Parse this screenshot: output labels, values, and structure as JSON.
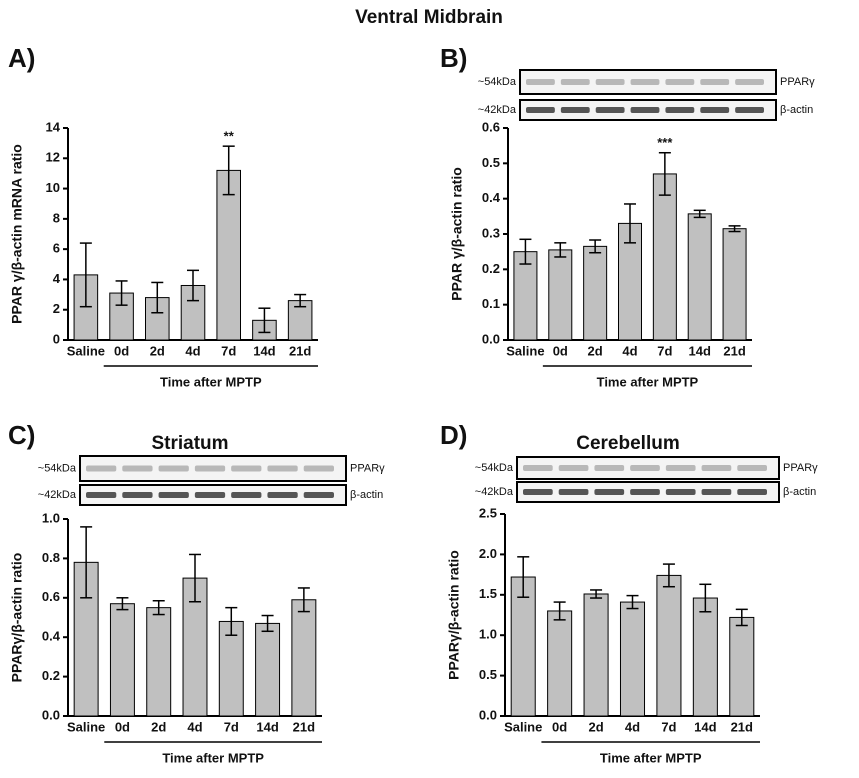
{
  "title": "Ventral Midbrain",
  "chart_data": [
    {
      "type": "bar",
      "panel": "A)",
      "ylabel": "PPAR γ/β-actin mRNA ratio",
      "xlabel": "Time after MPTP",
      "categories": [
        "Saline",
        "0d",
        "2d",
        "4d",
        "7d",
        "14d",
        "21d"
      ],
      "values": [
        4.3,
        3.1,
        2.8,
        3.6,
        11.2,
        1.3,
        2.6
      ],
      "errors": [
        2.1,
        0.8,
        1.0,
        1.0,
        1.6,
        0.8,
        0.4
      ],
      "color": "#c0c0c0",
      "ylim": [
        0,
        14
      ],
      "yticks": [
        0,
        2,
        4,
        6,
        8,
        10,
        12,
        14
      ],
      "annotations": [
        {
          "text": "**",
          "x": "7d"
        }
      ]
    },
    {
      "type": "bar",
      "panel": "B)",
      "ylabel": "PPAR γ/β-actin ratio",
      "xlabel": "Time after MPTP",
      "blots": [
        {
          "size": "~54kDa",
          "protein": "PPARγ"
        },
        {
          "size": "~42kDa",
          "protein": "β-actin"
        }
      ],
      "categories": [
        "Saline",
        "0d",
        "2d",
        "4d",
        "7d",
        "14d",
        "21d"
      ],
      "values": [
        0.25,
        0.255,
        0.265,
        0.33,
        0.47,
        0.357,
        0.315
      ],
      "errors": [
        0.035,
        0.02,
        0.018,
        0.055,
        0.06,
        0.01,
        0.008
      ],
      "color": "#c0c0c0",
      "ylim": [
        0,
        0.6
      ],
      "yticks": [
        {
          "value": 0,
          "label": "0.0"
        },
        0.1,
        0.2,
        0.3,
        0.4,
        0.5,
        0.6
      ],
      "annotations": [
        {
          "text": "***",
          "x": "7d"
        }
      ]
    },
    {
      "type": "bar",
      "panel": "C)",
      "title": "Striatum",
      "ylabel": "PPARγ/β-actin ratio",
      "xlabel": "Time after MPTP",
      "blots": [
        {
          "size": "~54kDa",
          "protein": "PPARγ"
        },
        {
          "size": "~42kDa",
          "protein": "β-actin"
        }
      ],
      "categories": [
        "Saline",
        "0d",
        "2d",
        "4d",
        "7d",
        "14d",
        "21d"
      ],
      "values": [
        0.78,
        0.57,
        0.55,
        0.7,
        0.48,
        0.47,
        0.59
      ],
      "errors": [
        0.18,
        0.03,
        0.035,
        0.12,
        0.07,
        0.04,
        0.06
      ],
      "color": "#c0c0c0",
      "ylim": [
        0,
        1.0
      ],
      "yticks": [
        {
          "value": 0,
          "label": "0.0"
        },
        0.2,
        0.4,
        0.6,
        0.8,
        {
          "value": 1,
          "label": "1.0"
        }
      ]
    },
    {
      "type": "bar",
      "panel": "D)",
      "title": "Cerebellum",
      "ylabel": "PPARγ/β-actin ratio",
      "xlabel": "Time after MPTP",
      "blots": [
        {
          "size": "~54kDa",
          "protein": "PPARγ"
        },
        {
          "size": "~42kDa",
          "protein": "β-actin"
        }
      ],
      "categories": [
        "Saline",
        "0d",
        "2d",
        "4d",
        "7d",
        "14d",
        "21d"
      ],
      "values": [
        1.72,
        1.3,
        1.51,
        1.41,
        1.74,
        1.46,
        1.22
      ],
      "errors": [
        0.25,
        0.11,
        0.05,
        0.08,
        0.14,
        0.17,
        0.1
      ],
      "color": "#c0c0c0",
      "ylim": [
        0,
        2.5
      ],
      "yticks": [
        {
          "value": 0,
          "label": "0.0"
        },
        0.5,
        {
          "value": 1,
          "label": "1.0"
        },
        1.5,
        {
          "value": 2,
          "label": "2.0"
        },
        2.5
      ]
    }
  ]
}
